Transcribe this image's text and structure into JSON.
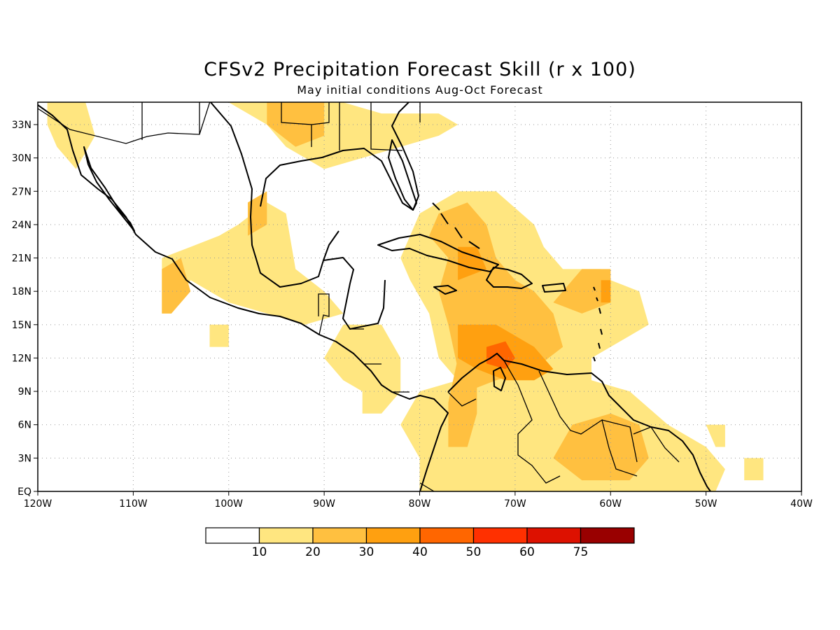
{
  "title": "CFSv2 Precipitation Forecast Skill (r x 100)",
  "subtitle": "May initial conditions  Aug-Oct Forecast",
  "map": {
    "lon_range": [
      -120,
      -40
    ],
    "lat_range": [
      0,
      35
    ],
    "x_ticks": [
      {
        "value": -120,
        "label": "120W"
      },
      {
        "value": -110,
        "label": "110W"
      },
      {
        "value": -100,
        "label": "100W"
      },
      {
        "value": -90,
        "label": "90W"
      },
      {
        "value": -80,
        "label": "80W"
      },
      {
        "value": -70,
        "label": "70W"
      },
      {
        "value": -60,
        "label": "60W"
      },
      {
        "value": -50,
        "label": "50W"
      },
      {
        "value": -40,
        "label": "40W"
      }
    ],
    "y_ticks": [
      {
        "value": 0,
        "label": "EQ"
      },
      {
        "value": 3,
        "label": "3N"
      },
      {
        "value": 6,
        "label": "6N"
      },
      {
        "value": 9,
        "label": "9N"
      },
      {
        "value": 12,
        "label": "12N"
      },
      {
        "value": 15,
        "label": "15N"
      },
      {
        "value": 18,
        "label": "18N"
      },
      {
        "value": 21,
        "label": "21N"
      },
      {
        "value": 24,
        "label": "24N"
      },
      {
        "value": 27,
        "label": "27N"
      },
      {
        "value": 30,
        "label": "30N"
      },
      {
        "value": 33,
        "label": "33N"
      }
    ],
    "grid": true
  },
  "colorbar": {
    "colors": [
      "#ffffff",
      "#ffe680",
      "#ffc040",
      "#ffa010",
      "#ff6600",
      "#ff3000",
      "#dd1100",
      "#990000"
    ],
    "labels": [
      "10",
      "20",
      "30",
      "40",
      "50",
      "60",
      "75"
    ]
  },
  "chart_data": {
    "type": "heatmap",
    "title": "CFSv2 Precipitation Forecast Skill (r x 100)",
    "subtitle": "May initial conditions  Aug-Oct Forecast",
    "xlim": [
      -120,
      -40
    ],
    "ylim": [
      0,
      35
    ],
    "levels": [
      10,
      20,
      30,
      40,
      50,
      60,
      75
    ],
    "regions": [
      {
        "level": 10,
        "lonlat": [
          [
            -119,
            35
          ],
          [
            -115,
            35
          ],
          [
            -114,
            32
          ],
          [
            -116,
            29
          ],
          [
            -118,
            31
          ],
          [
            -119,
            33
          ]
        ]
      },
      {
        "level": 10,
        "lonlat": [
          [
            -110,
            35
          ],
          [
            -100,
            35
          ],
          [
            -96,
            33
          ],
          [
            -94,
            31
          ],
          [
            -90,
            29
          ],
          [
            -86,
            30
          ],
          [
            -82,
            31
          ],
          [
            -78,
            32
          ],
          [
            -76,
            33
          ],
          [
            -78,
            34
          ],
          [
            -84,
            34
          ],
          [
            -88,
            35
          ]
        ]
      },
      {
        "level": 20,
        "lonlat": [
          [
            -96,
            35
          ],
          [
            -90,
            35
          ],
          [
            -90,
            32
          ],
          [
            -93,
            31
          ],
          [
            -96,
            33
          ]
        ]
      },
      {
        "level": 10,
        "lonlat": [
          [
            -99,
            24
          ],
          [
            -96,
            26
          ],
          [
            -94,
            25
          ],
          [
            -93,
            20
          ],
          [
            -90,
            18
          ],
          [
            -88,
            16
          ],
          [
            -92,
            15
          ],
          [
            -96,
            16
          ],
          [
            -100,
            17
          ],
          [
            -104,
            19
          ],
          [
            -106,
            16
          ],
          [
            -107,
            16
          ],
          [
            -107,
            21
          ],
          [
            -104,
            22
          ],
          [
            -101,
            23
          ]
        ]
      },
      {
        "level": 20,
        "lonlat": [
          [
            -98,
            26
          ],
          [
            -96,
            27
          ],
          [
            -96,
            24
          ],
          [
            -98,
            23
          ]
        ]
      },
      {
        "level": 20,
        "lonlat": [
          [
            -107,
            20
          ],
          [
            -105,
            21
          ],
          [
            -104,
            18
          ],
          [
            -106,
            16
          ],
          [
            -107,
            16
          ]
        ]
      },
      {
        "level": 10,
        "lonlat": [
          [
            -102,
            15
          ],
          [
            -100,
            15
          ],
          [
            -100,
            13
          ],
          [
            -102,
            13
          ]
        ]
      },
      {
        "level": 10,
        "lonlat": [
          [
            -88,
            15
          ],
          [
            -84,
            15
          ],
          [
            -82,
            12
          ],
          [
            -82,
            9
          ],
          [
            -84,
            7
          ],
          [
            -86,
            7
          ],
          [
            -86,
            9
          ],
          [
            -88,
            10
          ],
          [
            -90,
            12
          ]
        ]
      },
      {
        "level": 10,
        "lonlat": [
          [
            -80,
            25
          ],
          [
            -76,
            27
          ],
          [
            -72,
            27
          ],
          [
            -68,
            24
          ],
          [
            -67,
            22
          ],
          [
            -65,
            20
          ],
          [
            -61,
            20
          ],
          [
            -60,
            19
          ],
          [
            -57,
            18
          ],
          [
            -56,
            15
          ],
          [
            -58,
            14
          ],
          [
            -62,
            12
          ],
          [
            -62,
            10
          ],
          [
            -58,
            9
          ],
          [
            -54,
            6
          ],
          [
            -50,
            4
          ],
          [
            -48,
            2
          ],
          [
            -49,
            0
          ],
          [
            -80,
            0
          ],
          [
            -80,
            3
          ],
          [
            -82,
            6
          ],
          [
            -80,
            9
          ],
          [
            -76,
            10
          ],
          [
            -78,
            12
          ],
          [
            -79,
            16
          ],
          [
            -81,
            19
          ],
          [
            -82,
            21
          ]
        ]
      },
      {
        "level": 20,
        "lonlat": [
          [
            -78,
            25
          ],
          [
            -75,
            26
          ],
          [
            -73,
            24
          ],
          [
            -72,
            21
          ],
          [
            -70,
            19
          ],
          [
            -68,
            18
          ],
          [
            -66,
            16
          ],
          [
            -65,
            13
          ],
          [
            -68,
            11
          ],
          [
            -72,
            10
          ],
          [
            -75,
            9
          ],
          [
            -76,
            11
          ],
          [
            -77,
            15
          ],
          [
            -78,
            18
          ],
          [
            -77,
            21
          ],
          [
            -79,
            23
          ]
        ]
      },
      {
        "level": 20,
        "lonlat": [
          [
            -63,
            20
          ],
          [
            -60,
            20
          ],
          [
            -60,
            17
          ],
          [
            -63,
            16
          ],
          [
            -66,
            17
          ]
        ]
      },
      {
        "level": 20,
        "lonlat": [
          [
            -76,
            12
          ],
          [
            -74,
            12
          ],
          [
            -74,
            7
          ],
          [
            -75,
            4
          ],
          [
            -77,
            4
          ],
          [
            -77,
            8
          ]
        ]
      },
      {
        "level": 20,
        "lonlat": [
          [
            -64,
            6
          ],
          [
            -60,
            7
          ],
          [
            -57,
            6
          ],
          [
            -56,
            3
          ],
          [
            -58,
            1
          ],
          [
            -63,
            1
          ],
          [
            -66,
            3
          ]
        ]
      },
      {
        "level": 30,
        "lonlat": [
          [
            -76,
            15
          ],
          [
            -72,
            15
          ],
          [
            -68,
            13
          ],
          [
            -66,
            11
          ],
          [
            -68,
            10
          ],
          [
            -71,
            10
          ],
          [
            -74,
            11
          ],
          [
            -76,
            12
          ]
        ]
      },
      {
        "level": 30,
        "lonlat": [
          [
            -76,
            22
          ],
          [
            -74,
            22
          ],
          [
            -73,
            20
          ],
          [
            -76,
            19
          ]
        ]
      },
      {
        "level": 30,
        "lonlat": [
          [
            -61,
            19
          ],
          [
            -60,
            19
          ],
          [
            -60,
            17
          ],
          [
            -61,
            17
          ]
        ]
      },
      {
        "level": 40,
        "lonlat": [
          [
            -73,
            13
          ],
          [
            -71,
            13.5
          ],
          [
            -70,
            12
          ],
          [
            -71,
            11
          ],
          [
            -73,
            11.5
          ]
        ]
      },
      {
        "level": 10,
        "lonlat": [
          [
            -50,
            6
          ],
          [
            -48,
            6
          ],
          [
            -48,
            4
          ],
          [
            -49,
            4
          ]
        ]
      },
      {
        "level": 10,
        "lonlat": [
          [
            -46,
            3
          ],
          [
            -44,
            3
          ],
          [
            -44,
            1
          ],
          [
            -46,
            1
          ]
        ]
      }
    ]
  }
}
